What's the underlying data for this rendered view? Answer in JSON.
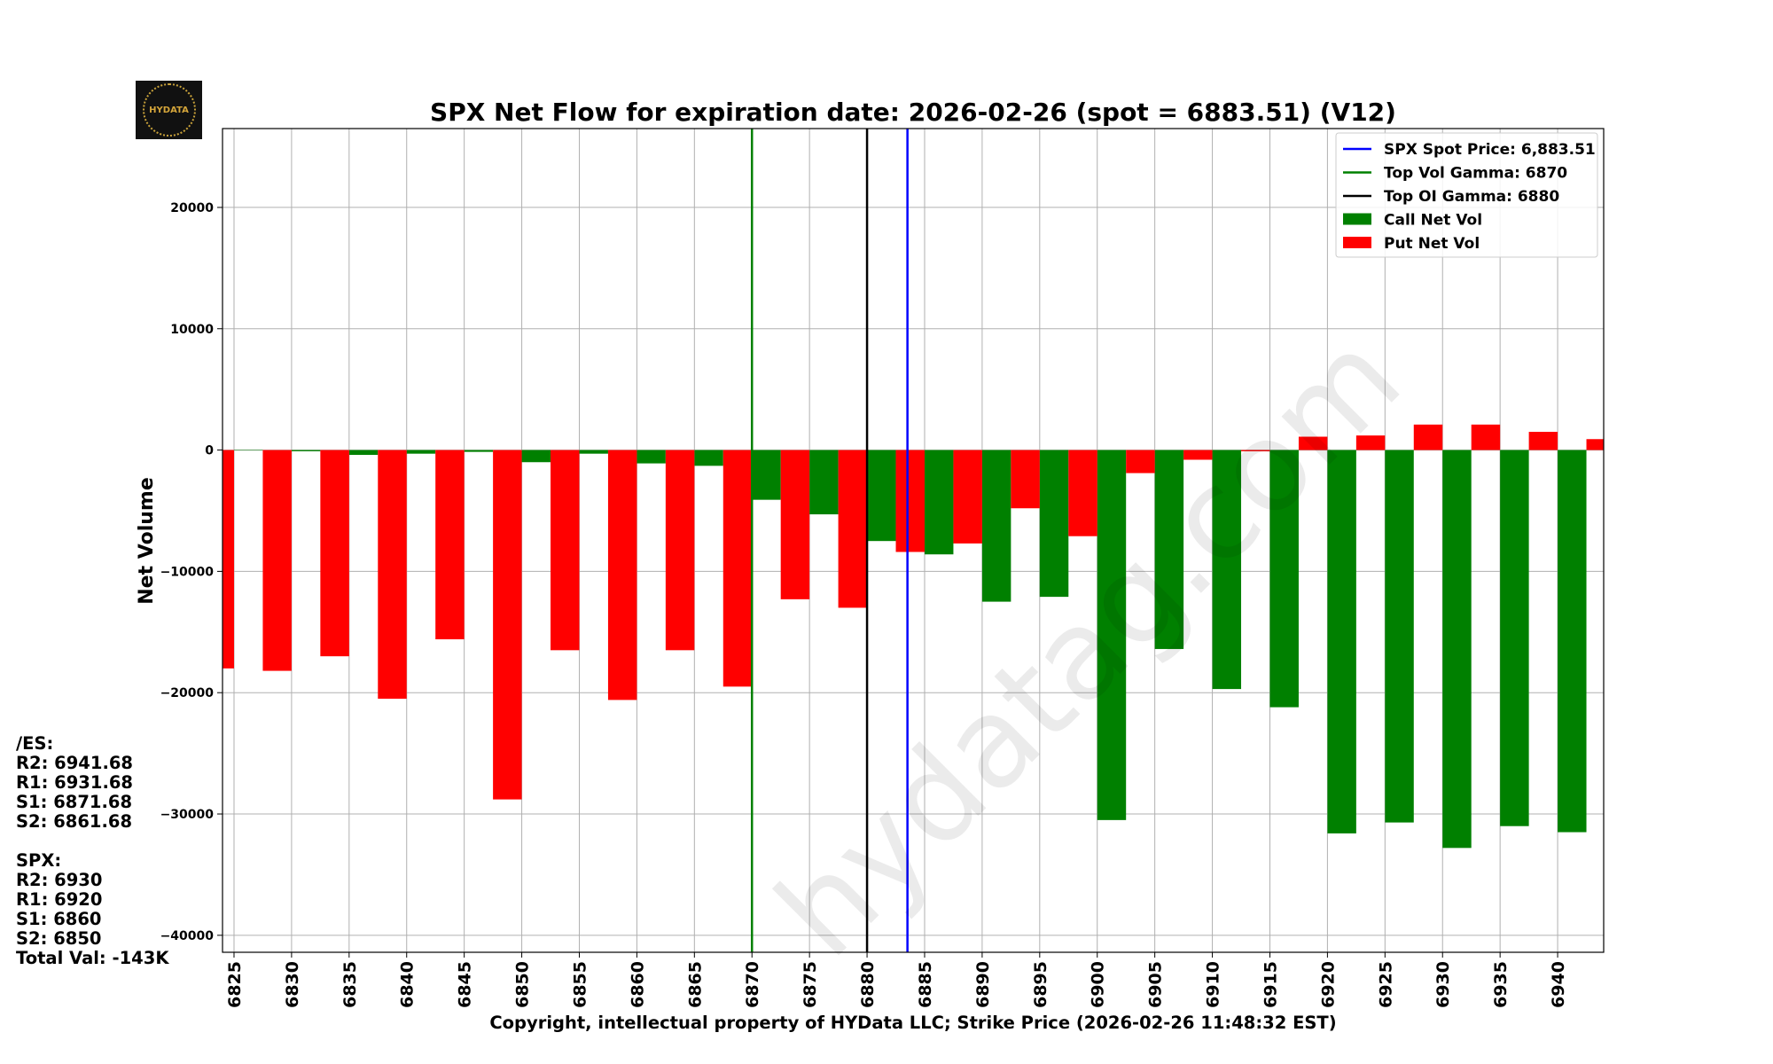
{
  "logo": {
    "text": "HYDATA"
  },
  "watermark": "hydatag.com",
  "levels": {
    "es_title": "/ES:",
    "es": [
      "R2: 6941.68",
      "R1: 6931.68",
      "S1: 6871.68",
      "S2: 6861.68"
    ],
    "spx_title": "SPX:",
    "spx": [
      "R2: 6930",
      "R1: 6920",
      "S1: 6860",
      "S2: 6850"
    ],
    "total": "Total Val: -143K"
  },
  "chart_data": {
    "type": "bar",
    "title": "SPX Net Flow for expiration date: 2026-02-26 (spot = 6883.51) (V12)",
    "xlabel": "Copyright, intellectual property of HYData LLC; Strike Price (2026-02-26 11:48:32 EST)",
    "ylabel": "Net Volume",
    "xlim": [
      6824,
      6944
    ],
    "ylim": [
      -41400,
      26500
    ],
    "yticks": [
      20000,
      10000,
      0,
      -10000,
      -20000,
      -30000,
      -40000
    ],
    "ytick_labels": [
      "20000",
      "10000",
      "0",
      "−10000",
      "−20000",
      "−30000",
      "−40000"
    ],
    "xticks": [
      6825,
      6830,
      6835,
      6840,
      6845,
      6850,
      6855,
      6860,
      6865,
      6870,
      6875,
      6880,
      6885,
      6890,
      6895,
      6900,
      6905,
      6910,
      6915,
      6920,
      6925,
      6930,
      6935,
      6940
    ],
    "grid": true,
    "legend_position": "top-right",
    "strikes": [
      6825,
      6830,
      6835,
      6840,
      6845,
      6850,
      6855,
      6860,
      6865,
      6870,
      6875,
      6880,
      6885,
      6890,
      6895,
      6900,
      6905,
      6910,
      6915,
      6920,
      6925,
      6930,
      6935,
      6940,
      6945
    ],
    "series": [
      {
        "name": "Call Net Vol",
        "color": "#008000",
        "values": [
          0,
          -100,
          -400,
          -300,
          -150,
          -1000,
          -300,
          -1100,
          -1300,
          -4100,
          -5300,
          -7500,
          -8600,
          -12500,
          -12100,
          -30500,
          -16400,
          -19700,
          -21200,
          -31600,
          -30700,
          -32800,
          -31000,
          -31500,
          null
        ]
      },
      {
        "name": "Put Net Vol",
        "color": "#ff0000",
        "values": [
          -18000,
          -18200,
          -17000,
          -20500,
          -15600,
          -28800,
          -16500,
          -20600,
          -16500,
          -19500,
          -12300,
          -13000,
          -8400,
          -7700,
          -4800,
          -7100,
          -1900,
          -800,
          -100,
          1100,
          1200,
          2100,
          2100,
          1500,
          900
        ]
      }
    ],
    "vlines": [
      {
        "name": "SPX Spot Price: 6,883.51",
        "x": 6883.51,
        "color": "#0000ff"
      },
      {
        "name": "Top Vol Gamma: 6870",
        "x": 6870,
        "color": "#008000"
      },
      {
        "name": "Top OI Gamma: 6880",
        "x": 6880,
        "color": "#000000"
      }
    ]
  }
}
